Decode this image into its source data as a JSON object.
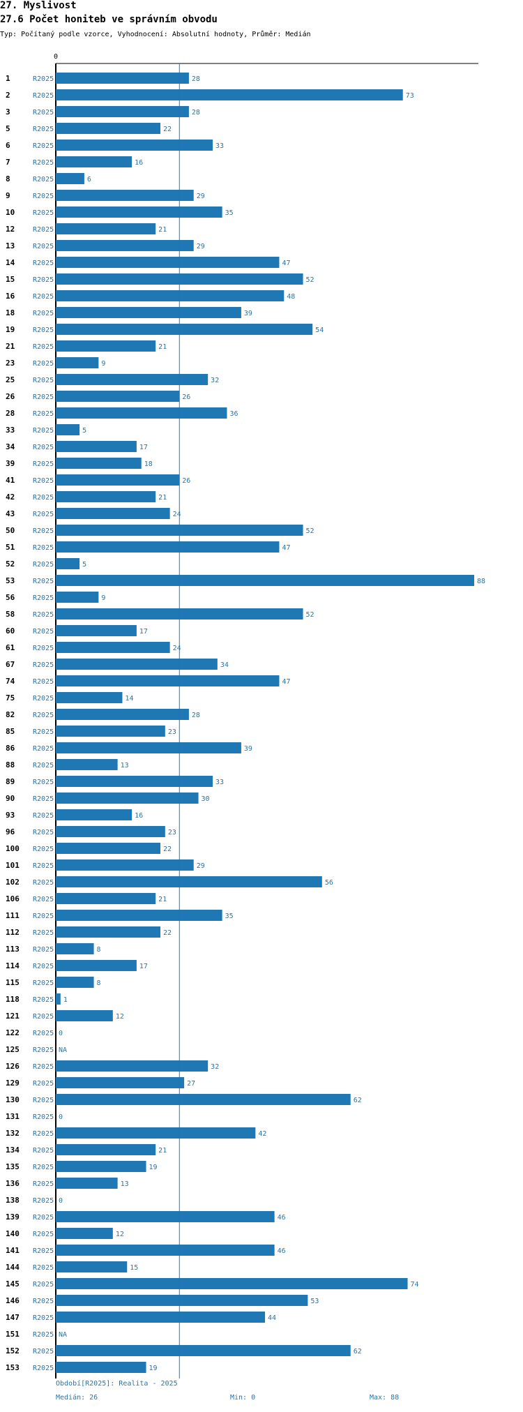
{
  "header": {
    "title": "27. Myslivost",
    "subtitle": "27.6 Počet honiteb ve správním obvodu",
    "meta": "Typ: Počítaný podle vzorce, Vyhodnocení: Absolutní hodnoty, Průměr: Medián"
  },
  "footer": {
    "period": "Období[R2025]: Realita - 2025",
    "median": "Medián: 26",
    "min": "Min: 0",
    "max": "Max: 88"
  },
  "colors": {
    "bar": "#1f77b4",
    "label": "#1f77b4",
    "axis": "#000000",
    "median_line": "#1f77b4"
  },
  "chart_data": {
    "type": "bar",
    "orientation": "horizontal",
    "series_label": "R2025",
    "xlim": [
      0,
      88
    ],
    "x_tick_labels": [
      "0"
    ],
    "median": 26,
    "categories": [
      "1",
      "2",
      "3",
      "5",
      "6",
      "7",
      "8",
      "9",
      "10",
      "12",
      "13",
      "14",
      "15",
      "16",
      "18",
      "19",
      "21",
      "23",
      "25",
      "26",
      "28",
      "33",
      "34",
      "39",
      "41",
      "42",
      "43",
      "50",
      "51",
      "52",
      "53",
      "56",
      "58",
      "60",
      "61",
      "67",
      "74",
      "75",
      "82",
      "85",
      "86",
      "88",
      "89",
      "90",
      "93",
      "96",
      "100",
      "101",
      "102",
      "106",
      "111",
      "112",
      "113",
      "114",
      "115",
      "118",
      "121",
      "122",
      "125",
      "126",
      "129",
      "130",
      "131",
      "132",
      "134",
      "135",
      "136",
      "138",
      "139",
      "140",
      "141",
      "144",
      "145",
      "146",
      "147",
      "151",
      "152",
      "153"
    ],
    "values": [
      28,
      73,
      28,
      22,
      33,
      16,
      6,
      29,
      35,
      21,
      29,
      47,
      52,
      48,
      39,
      54,
      21,
      9,
      32,
      26,
      36,
      5,
      17,
      18,
      26,
      21,
      24,
      52,
      47,
      5,
      88,
      9,
      52,
      17,
      24,
      34,
      47,
      14,
      28,
      23,
      39,
      13,
      33,
      30,
      16,
      23,
      22,
      29,
      56,
      21,
      35,
      22,
      8,
      17,
      8,
      1,
      12,
      0,
      null,
      32,
      27,
      62,
      0,
      42,
      21,
      19,
      13,
      0,
      46,
      12,
      46,
      15,
      74,
      53,
      44,
      null,
      62,
      19
    ],
    "value_labels": [
      "28",
      "73",
      "28",
      "22",
      "33",
      "16",
      "6",
      "29",
      "35",
      "21",
      "29",
      "47",
      "52",
      "48",
      "39",
      "54",
      "21",
      "9",
      "32",
      "26",
      "36",
      "5",
      "17",
      "18",
      "26",
      "21",
      "24",
      "52",
      "47",
      "5",
      "88",
      "9",
      "52",
      "17",
      "24",
      "34",
      "47",
      "14",
      "28",
      "23",
      "39",
      "13",
      "33",
      "30",
      "16",
      "23",
      "22",
      "29",
      "56",
      "21",
      "35",
      "22",
      "8",
      "17",
      "8",
      "1",
      "12",
      "0",
      "NA",
      "32",
      "27",
      "62",
      "0",
      "42",
      "21",
      "19",
      "13",
      "0",
      "46",
      "12",
      "46",
      "15",
      "74",
      "53",
      "44",
      "NA",
      "62",
      "19"
    ]
  }
}
